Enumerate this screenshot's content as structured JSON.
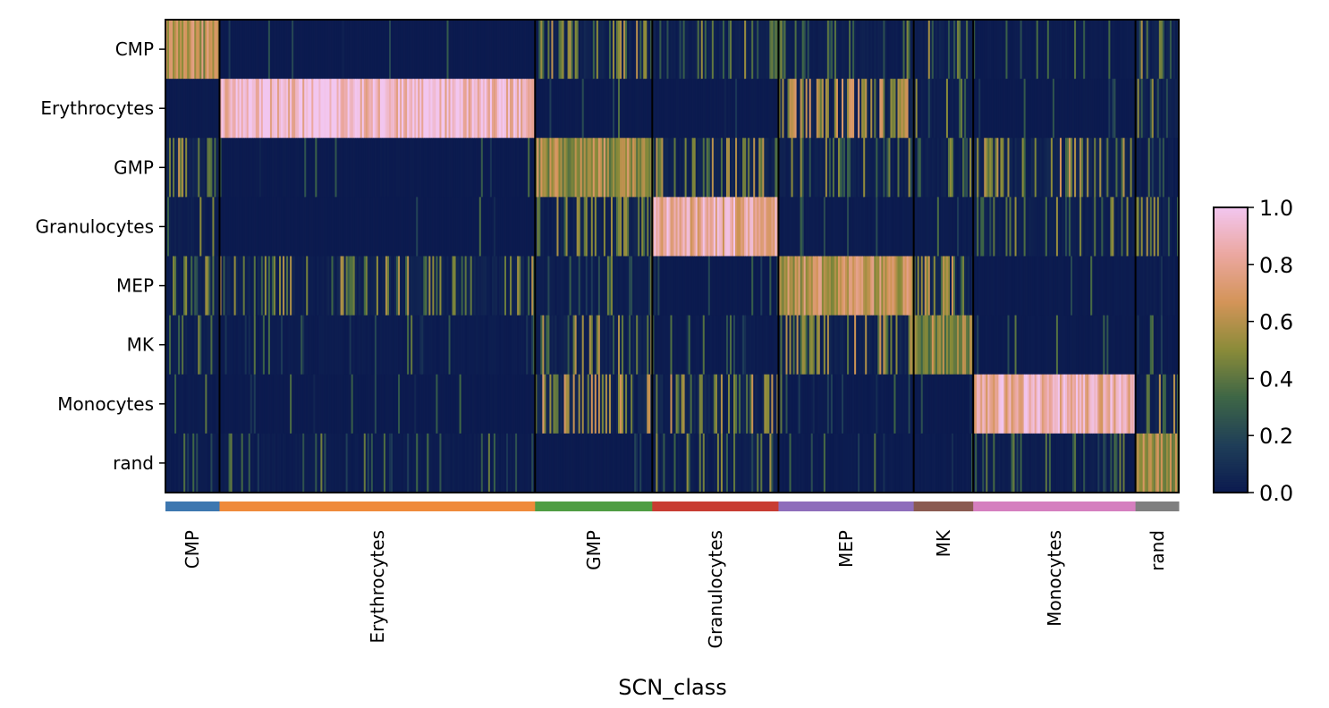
{
  "chart_data": {
    "type": "heatmap",
    "xlabel": "SCN_class",
    "rows": [
      "CMP",
      "Erythrocytes",
      "GMP",
      "Granulocytes",
      "MEP",
      "MK",
      "Monocytes",
      "rand"
    ],
    "column_groups": [
      {
        "name": "CMP",
        "cells": 30,
        "color": "#3d77b0"
      },
      {
        "name": "Erythrocytes",
        "cells": 175,
        "color": "#ef8a3b"
      },
      {
        "name": "GMP",
        "cells": 65,
        "color": "#4f9d43"
      },
      {
        "name": "Granulocytes",
        "cells": 70,
        "color": "#c83c32"
      },
      {
        "name": "MEP",
        "cells": 75,
        "color": "#8e6dbb"
      },
      {
        "name": "MK",
        "cells": 33,
        "color": "#8a5a51"
      },
      {
        "name": "Monocytes",
        "cells": 90,
        "color": "#d57fbf"
      },
      {
        "name": "rand",
        "cells": 24,
        "color": "#7f7f7f"
      }
    ],
    "mean_scores": [
      [
        0.6,
        0.02,
        0.22,
        0.15,
        0.12,
        0.18,
        0.06,
        0.18
      ],
      [
        0.03,
        0.93,
        0.03,
        0.03,
        0.3,
        0.15,
        0.03,
        0.15
      ],
      [
        0.25,
        0.03,
        0.55,
        0.2,
        0.15,
        0.15,
        0.25,
        0.12
      ],
      [
        0.12,
        0.02,
        0.2,
        0.82,
        0.05,
        0.06,
        0.15,
        0.2
      ],
      [
        0.15,
        0.22,
        0.1,
        0.03,
        0.62,
        0.25,
        0.04,
        0.08
      ],
      [
        0.15,
        0.06,
        0.2,
        0.06,
        0.25,
        0.5,
        0.04,
        0.05
      ],
      [
        0.06,
        0.03,
        0.3,
        0.25,
        0.05,
        0.03,
        0.85,
        0.2
      ],
      [
        0.08,
        0.08,
        0.03,
        0.15,
        0.05,
        0.05,
        0.1,
        0.55
      ]
    ],
    "colorbar": {
      "min": 0.0,
      "max": 1.0,
      "ticks": [
        "0.0",
        "0.2",
        "0.4",
        "0.6",
        "0.8",
        "1.0"
      ],
      "colors": [
        "#0b1a4f",
        "#1f3e58",
        "#3e6646",
        "#8a8b39",
        "#d39458",
        "#eba7a0",
        "#f2c6ef"
      ]
    },
    "grid": false
  }
}
